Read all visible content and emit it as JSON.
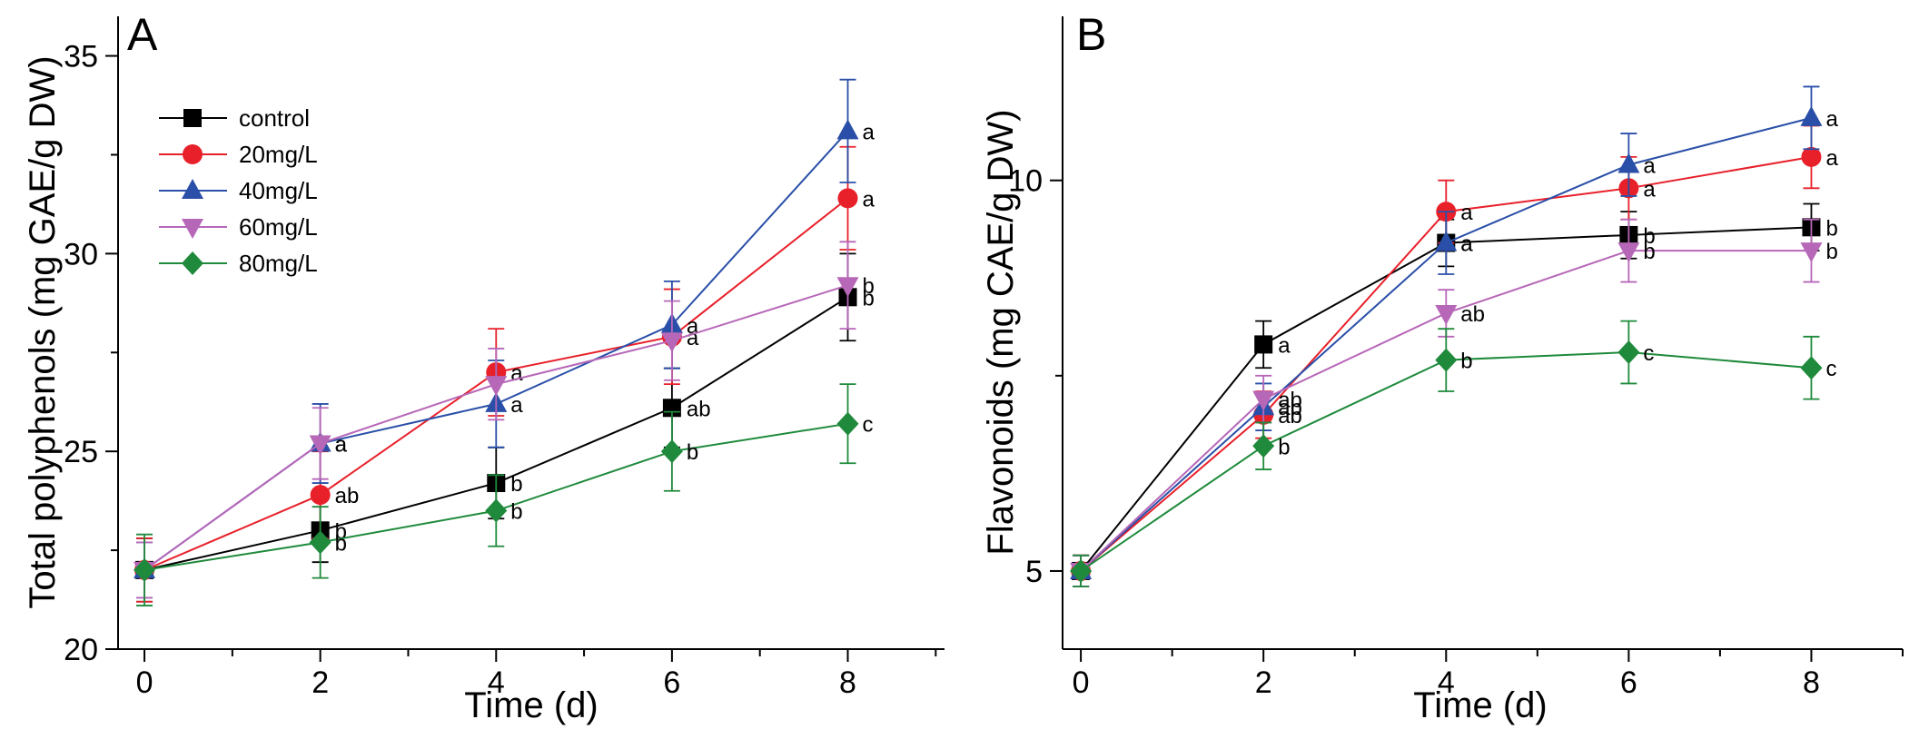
{
  "chart_data": [
    {
      "type": "line",
      "panel_label": "A",
      "xlabel": "Time (d)",
      "ylabel": "Total polyphenols (mg GAE/g DW)",
      "x": [
        0,
        2,
        4,
        6,
        8
      ],
      "xlim": [
        -0.3,
        9.1
      ],
      "ylim": [
        20,
        36
      ],
      "xticks": [
        0,
        2,
        4,
        6,
        8
      ],
      "yticks": [
        20,
        25,
        30,
        35
      ],
      "legend_position": "top-left",
      "series": [
        {
          "name": "control",
          "color": "#000000",
          "marker": "square",
          "values": [
            22.0,
            23.0,
            24.2,
            26.1,
            28.9
          ],
          "err": [
            0.8,
            0.8,
            0.9,
            1.0,
            1.1
          ],
          "labels": [
            "",
            "b",
            "b",
            "ab",
            "b"
          ]
        },
        {
          "name": "20mg/L",
          "color": "#e8202a",
          "marker": "circle",
          "values": [
            22.0,
            23.9,
            27.0,
            27.9,
            31.4
          ],
          "err": [
            0.8,
            1.1,
            1.1,
            1.2,
            1.3
          ],
          "labels": [
            "",
            "ab",
            "a",
            "a",
            "a"
          ]
        },
        {
          "name": "40mg/L",
          "color": "#2a4fa8",
          "marker": "triangle-up",
          "values": [
            22.0,
            25.2,
            26.2,
            28.2,
            33.1
          ],
          "err": [
            0.7,
            1.0,
            1.1,
            1.1,
            1.3
          ],
          "labels": [
            "",
            "a",
            "a",
            "a",
            "a"
          ]
        },
        {
          "name": "60mg/L",
          "color": "#b767b8",
          "marker": "triangle-down",
          "values": [
            22.0,
            25.2,
            26.7,
            27.8,
            29.2
          ],
          "err": [
            0.7,
            0.9,
            0.9,
            1.0,
            1.1
          ],
          "labels": [
            "",
            "a",
            "",
            "",
            "b"
          ]
        },
        {
          "name": "80mg/L",
          "color": "#1f8a3c",
          "marker": "diamond",
          "values": [
            22.0,
            22.7,
            23.5,
            25.0,
            25.7
          ],
          "err": [
            0.9,
            0.9,
            0.9,
            1.0,
            1.0
          ],
          "labels": [
            "",
            "b",
            "b",
            "b",
            "c"
          ]
        }
      ]
    },
    {
      "type": "line",
      "panel_label": "B",
      "xlabel": "Time (d)",
      "ylabel": "Flavonoids (mg CAE/g DW)",
      "x": [
        0,
        2,
        4,
        6,
        8
      ],
      "xlim": [
        -0.2,
        9.0
      ],
      "ylim": [
        4,
        12.1
      ],
      "xticks": [
        0,
        2,
        4,
        6,
        8
      ],
      "yticks": [
        5,
        10
      ],
      "series": [
        {
          "name": "control",
          "color": "#000000",
          "marker": "square",
          "values": [
            5.0,
            7.9,
            9.2,
            9.3,
            9.4
          ],
          "err": [
            0.2,
            0.3,
            0.3,
            0.3,
            0.3
          ],
          "labels": [
            "",
            "a",
            "a",
            "b",
            "b"
          ]
        },
        {
          "name": "20mg/L",
          "color": "#e8202a",
          "marker": "circle",
          "values": [
            5.0,
            7.0,
            9.6,
            9.9,
            10.3
          ],
          "err": [
            0.2,
            0.3,
            0.4,
            0.4,
            0.4
          ],
          "labels": [
            "",
            "ab",
            "a",
            "a",
            "a"
          ]
        },
        {
          "name": "40mg/L",
          "color": "#2a4fa8",
          "marker": "triangle-up",
          "values": [
            5.0,
            7.1,
            9.2,
            10.2,
            10.8
          ],
          "err": [
            0.2,
            0.3,
            0.4,
            0.4,
            0.4
          ],
          "labels": [
            "",
            "ab",
            "a",
            "a",
            "a"
          ]
        },
        {
          "name": "60mg/L",
          "color": "#b767b8",
          "marker": "triangle-down",
          "values": [
            5.0,
            7.2,
            8.3,
            9.1,
            9.1
          ],
          "err": [
            0.2,
            0.3,
            0.3,
            0.4,
            0.4
          ],
          "labels": [
            "",
            "ab",
            "ab",
            "b",
            "b"
          ]
        },
        {
          "name": "80mg/L",
          "color": "#1f8a3c",
          "marker": "diamond",
          "values": [
            5.0,
            6.6,
            7.7,
            7.8,
            7.6
          ],
          "err": [
            0.2,
            0.3,
            0.4,
            0.4,
            0.4
          ],
          "labels": [
            "",
            "b",
            "b",
            "c",
            "c"
          ]
        }
      ]
    }
  ]
}
